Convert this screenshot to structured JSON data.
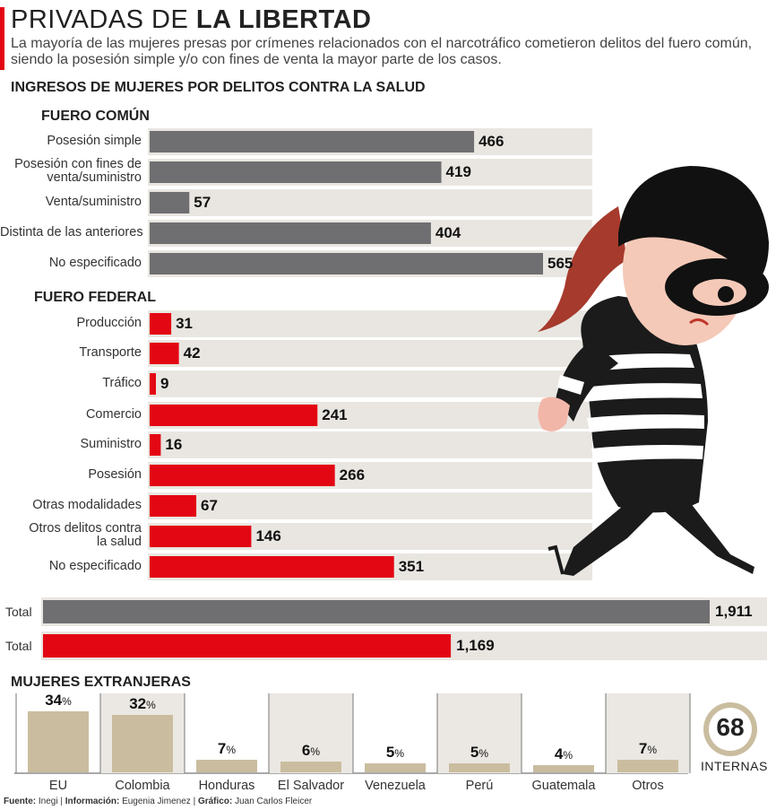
{
  "header": {
    "title_light": "PRIVADAS DE ",
    "title_bold": "LA LIBERTAD",
    "subtitle": "La mayoría de las mujeres presas por crímenes relacionados con el narcotráfico cometieron delitos del fuero común, siendo la posesión simple y/o con fines de venta la mayor parte de los casos.",
    "chart_heading": "INGRESOS DE MUJERES  POR DELITOS CONTRA LA SALUD"
  },
  "colors": {
    "gray": "#6f6f71",
    "red": "#e30613",
    "track": "#e9e6e1",
    "tan": "#cabd9f",
    "band": "#ebe8e3",
    "accent_red": "#e30613"
  },
  "chart_data": [
    {
      "type": "bar",
      "orientation": "horizontal",
      "title": "FUERO COMÚN",
      "categories": [
        "Posesión simple",
        "Posesión con fines de venta/suministro",
        "Venta/suministro",
        "Distinta de las anteriores",
        "No especificado"
      ],
      "values": [
        466,
        419,
        57,
        404,
        565
      ],
      "value_labels": [
        "466",
        "419",
        "57",
        "404",
        "565"
      ]
    },
    {
      "type": "bar",
      "orientation": "horizontal",
      "title": "FUERO FEDERAL",
      "categories": [
        "Producción",
        "Transporte",
        "Tráfico",
        "Comercio",
        "Suministro",
        "Posesión",
        "Otras modalidades",
        "Otros delitos contra la salud",
        "No especificado"
      ],
      "values": [
        31,
        42,
        9,
        241,
        16,
        266,
        67,
        146,
        351
      ],
      "value_labels": [
        "31",
        "42",
        "9",
        "241",
        "16",
        "266",
        "67",
        "146",
        "351"
      ]
    },
    {
      "type": "bar",
      "orientation": "horizontal",
      "title": "",
      "categories": [
        "Total",
        "Total"
      ],
      "values": [
        1911,
        1169
      ],
      "value_labels": [
        "1,911",
        "1,169"
      ]
    },
    {
      "type": "bar",
      "orientation": "vertical",
      "title": "MUJERES EXTRANJERAS",
      "categories": [
        "EU",
        "Colombia",
        "Honduras",
        "El Salvador",
        "Venezuela",
        "Perú",
        "Guatemala",
        "Otros"
      ],
      "values": [
        34,
        32,
        7,
        6,
        5,
        5,
        4,
        7
      ],
      "unit": "%",
      "ylim": [
        0,
        34
      ]
    }
  ],
  "interns": {
    "count": "68",
    "label": "INTERNAS"
  },
  "source": {
    "fuente_label": "Fuente:",
    "fuente": "Inegi",
    "info_label": "Información:",
    "info": "Eugenia Jimenez",
    "grafico_label": "Gráfico:",
    "grafico": "Juan Carlos Fleicer"
  },
  "illustration": {
    "icon": "female-thief-illustration"
  }
}
